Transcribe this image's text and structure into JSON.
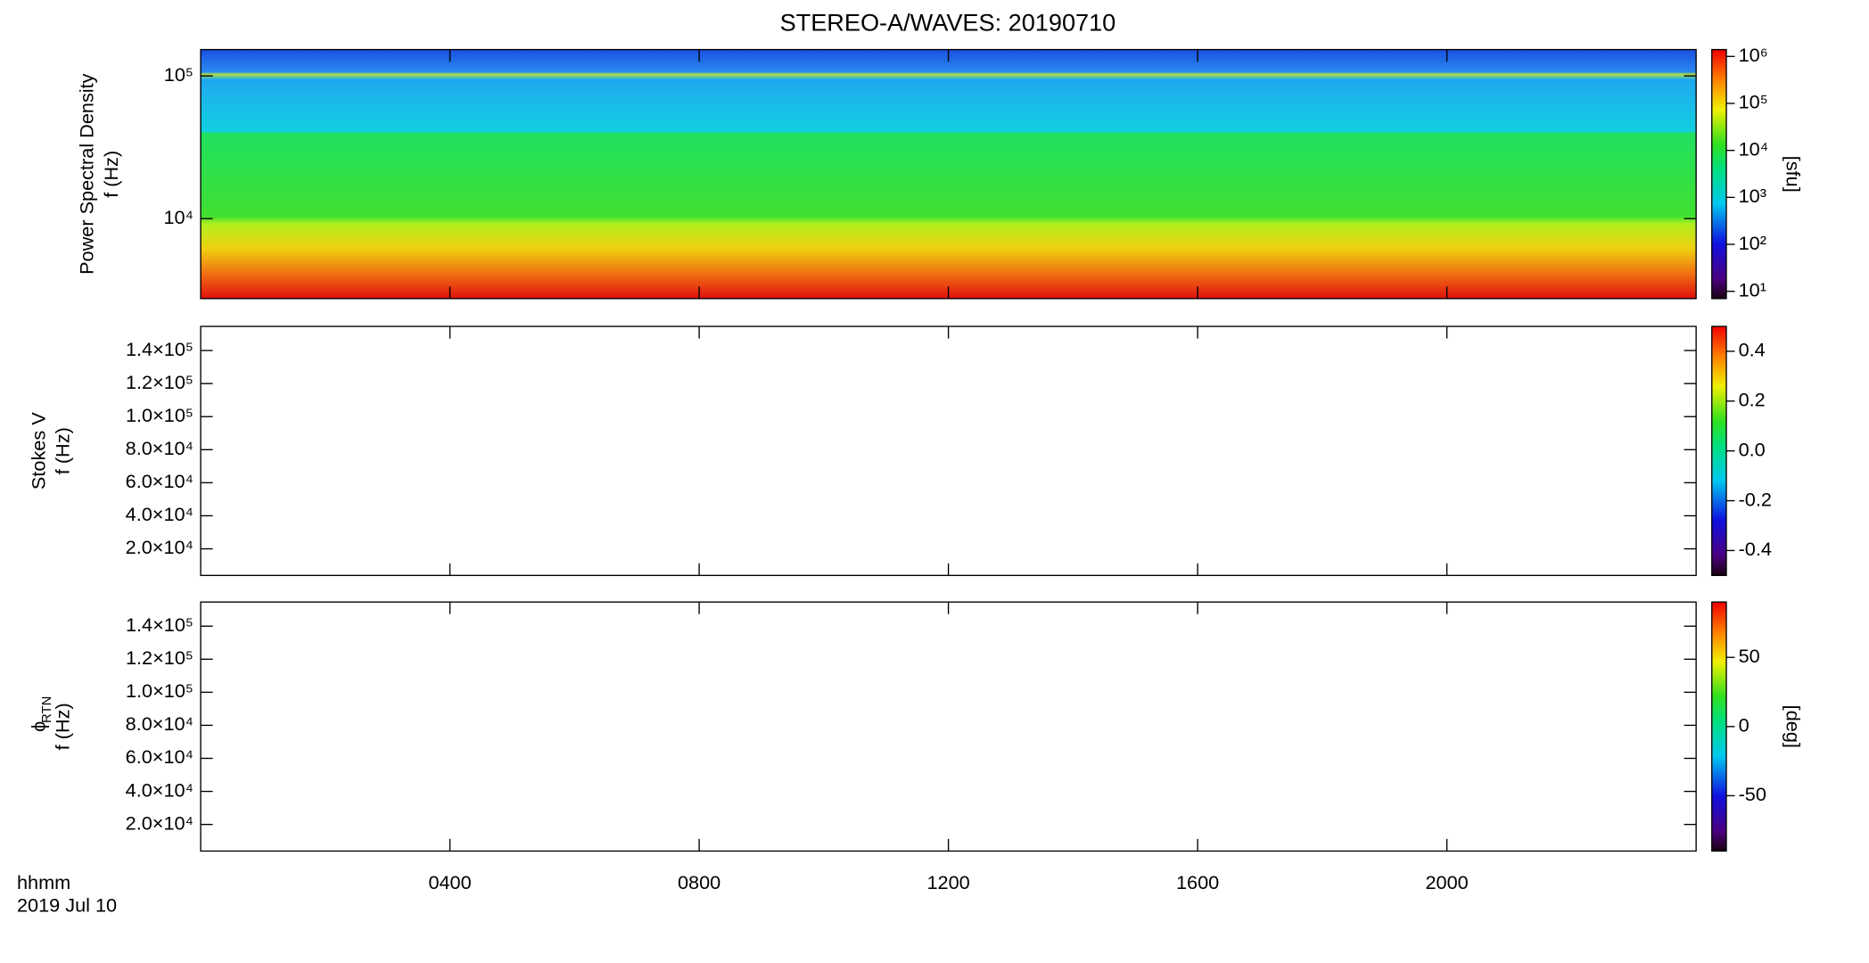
{
  "chart_data": [
    {
      "type": "heatmap",
      "title": "STEREO-A/WAVES: 20190710",
      "ylabel": [
        "Power Spectral Density",
        "f (Hz)"
      ],
      "ylog": true,
      "ylim": [
        2750,
        153000
      ],
      "yticks": [
        {
          "value": 10000,
          "label": "10⁴"
        },
        {
          "value": 100000,
          "label": "10⁵"
        }
      ],
      "xlim": [
        0,
        24
      ],
      "xticks": [
        {
          "value": 4,
          "label": "0400"
        },
        {
          "value": 8,
          "label": "0800"
        },
        {
          "value": 12,
          "label": "1200"
        },
        {
          "value": 16,
          "label": "1600"
        },
        {
          "value": 20,
          "label": "2000"
        }
      ],
      "colorbar": {
        "label": "[sfu]",
        "log": true,
        "lim": [
          7,
          1400000
        ],
        "ticks": [
          {
            "value": 10,
            "label": "10¹"
          },
          {
            "value": 100,
            "label": "10²"
          },
          {
            "value": 1000,
            "label": "10³"
          },
          {
            "value": 10000,
            "label": "10⁴"
          },
          {
            "value": 100000,
            "label": "10⁵"
          },
          {
            "value": 1000000,
            "label": "10⁶"
          }
        ]
      }
    },
    {
      "type": "heatmap",
      "ylabel": [
        "Stokes V",
        "f (Hz)"
      ],
      "ylog": false,
      "ylim": [
        3900,
        154600
      ],
      "yticks": [
        {
          "value": 20000,
          "label": "2.0×10⁴"
        },
        {
          "value": 40000,
          "label": "4.0×10⁴"
        },
        {
          "value": 60000,
          "label": "6.0×10⁴"
        },
        {
          "value": 80000,
          "label": "8.0×10⁴"
        },
        {
          "value": 100000,
          "label": "1.0×10⁵"
        },
        {
          "value": 120000,
          "label": "1.2×10⁵"
        },
        {
          "value": 140000,
          "label": "1.4×10⁵"
        }
      ],
      "xlim": [
        0,
        24
      ],
      "xticks": [
        {
          "value": 4,
          "label": "0400"
        },
        {
          "value": 8,
          "label": "0800"
        },
        {
          "value": 12,
          "label": "1200"
        },
        {
          "value": 16,
          "label": "1600"
        },
        {
          "value": 20,
          "label": "2000"
        }
      ],
      "colorbar": {
        "log": false,
        "lim": [
          -0.5,
          0.5
        ],
        "ticks": [
          -0.4,
          -0.2,
          {
            "value": 0,
            "label": "0.0"
          },
          0.2,
          0.4
        ]
      }
    },
    {
      "type": "heatmap",
      "ylabel": [
        "ϕ",
        "f (Hz)"
      ],
      "ylabel_subscript": "RTN",
      "ylog": false,
      "ylim": [
        3900,
        154600
      ],
      "yticks": [
        {
          "value": 20000,
          "label": "2.0×10⁴"
        },
        {
          "value": 40000,
          "label": "4.0×10⁴"
        },
        {
          "value": 60000,
          "label": "6.0×10⁴"
        },
        {
          "value": 80000,
          "label": "8.0×10⁴"
        },
        {
          "value": 100000,
          "label": "1.0×10⁵"
        },
        {
          "value": 120000,
          "label": "1.2×10⁵"
        },
        {
          "value": 140000,
          "label": "1.4×10⁵"
        }
      ],
      "xlim": [
        0,
        24
      ],
      "xticks": [
        {
          "value": 4,
          "label": "0400"
        },
        {
          "value": 8,
          "label": "0800"
        },
        {
          "value": 12,
          "label": "1200"
        },
        {
          "value": 16,
          "label": "1600"
        },
        {
          "value": 20,
          "label": "2000"
        }
      ],
      "xlabel": [
        "hhmm",
        "2019 Jul 10"
      ],
      "colorbar": {
        "label": "[deg]",
        "log": false,
        "lim": [
          -90,
          90
        ],
        "ticks": [
          -50,
          0,
          50
        ]
      }
    }
  ]
}
